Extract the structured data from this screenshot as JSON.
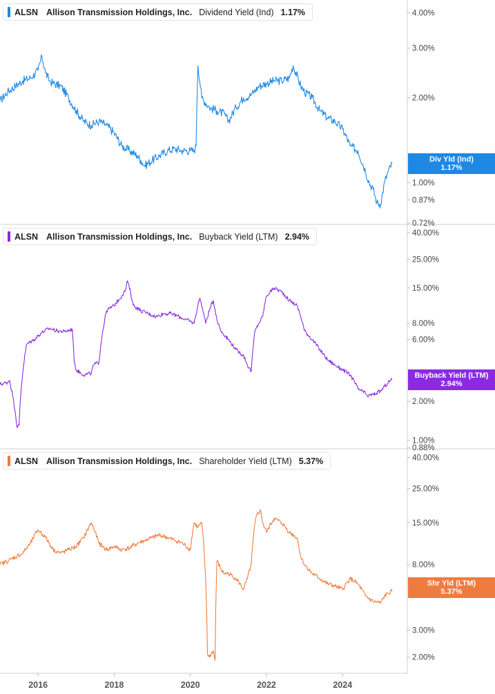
{
  "chart_data": [
    {
      "type": "line",
      "ticker": "ALSN",
      "company": "Allison Transmission Holdings, Inc.",
      "metric": "Dividend Yield (Ind)",
      "latest_value": "1.17%",
      "badge_label": "Div Yld (Ind)",
      "color": "#1e88e5",
      "scale": "log",
      "ylim": [
        0.72,
        4.2
      ],
      "y_ticks": [
        "4.00%",
        "3.00%",
        "2.00%",
        "1.00%",
        "0.87%",
        "0.72%"
      ],
      "series": [
        {
          "x": [
            2015.0,
            2015.2,
            2015.4,
            2015.6,
            2015.8,
            2016.0,
            2016.1,
            2016.2,
            2016.3,
            2016.4,
            2016.6,
            2016.8,
            2017.0,
            2017.2,
            2017.4,
            2017.6,
            2017.8,
            2018.0,
            2018.2,
            2018.4,
            2018.6,
            2018.7,
            2018.8,
            2019.0,
            2019.2,
            2019.4,
            2019.6,
            2019.8,
            2020.0,
            2020.1,
            2020.15,
            2020.2,
            2020.3,
            2020.5,
            2020.7,
            2020.9,
            2021.0,
            2021.2,
            2021.4,
            2021.6,
            2021.8,
            2022.0,
            2022.2,
            2022.4,
            2022.6,
            2022.7,
            2022.9,
            2023.0,
            2023.2,
            2023.4,
            2023.6,
            2023.8,
            2024.0,
            2024.2,
            2024.4,
            2024.6,
            2024.7,
            2024.8,
            2024.9,
            2025.0,
            2025.1,
            2025.2,
            2025.3
          ],
          "y": [
            1.95,
            2.1,
            2.2,
            2.3,
            2.35,
            2.5,
            2.8,
            2.45,
            2.3,
            2.25,
            2.2,
            2.0,
            1.8,
            1.65,
            1.6,
            1.65,
            1.6,
            1.5,
            1.35,
            1.3,
            1.25,
            1.2,
            1.15,
            1.2,
            1.25,
            1.3,
            1.32,
            1.3,
            1.3,
            1.3,
            1.35,
            2.6,
            2.0,
            1.85,
            1.8,
            1.75,
            1.65,
            1.85,
            2.0,
            2.05,
            2.2,
            2.25,
            2.3,
            2.3,
            2.35,
            2.6,
            2.2,
            2.1,
            2.0,
            1.8,
            1.7,
            1.65,
            1.55,
            1.35,
            1.3,
            1.1,
            1.0,
            0.95,
            0.85,
            0.84,
            1.0,
            1.1,
            1.17
          ]
        }
      ]
    },
    {
      "type": "line",
      "ticker": "ALSN",
      "company": "Allison Transmission Holdings, Inc.",
      "metric": "Buyback Yield (LTM)",
      "latest_value": "2.94%",
      "badge_label": "Buyback Yield (LTM)",
      "color": "#8a2be2",
      "scale": "log",
      "ylim": [
        0.88,
        41
      ],
      "y_ticks": [
        "40.00%",
        "25.00%",
        "15.00%",
        "8.00%",
        "6.00%",
        "3.00%",
        "2.00%",
        "1.00%",
        "0.88%"
      ],
      "series": [
        {
          "x": [
            2015.0,
            2015.2,
            2015.25,
            2015.45,
            2015.5,
            2015.7,
            2015.9,
            2016.1,
            2016.3,
            2016.5,
            2016.7,
            2016.9,
            2016.95,
            2017.0,
            2017.2,
            2017.4,
            2017.45,
            2017.6,
            2017.8,
            2018.0,
            2018.2,
            2018.3,
            2018.35,
            2018.5,
            2018.7,
            2018.9,
            2019.1,
            2019.3,
            2019.5,
            2019.7,
            2019.9,
            2020.1,
            2020.2,
            2020.25,
            2020.4,
            2020.6,
            2020.7,
            2020.8,
            2021.0,
            2021.2,
            2021.4,
            2021.5,
            2021.6,
            2021.7,
            2021.8,
            2021.85,
            2021.9,
            2022.0,
            2022.2,
            2022.4,
            2022.6,
            2022.8,
            2022.9,
            2023.0,
            2023.2,
            2023.4,
            2023.6,
            2023.8,
            2024.0,
            2024.2,
            2024.4,
            2024.6,
            2024.65,
            2024.8,
            2025.0,
            2025.1,
            2025.2,
            2025.3
          ],
          "y": [
            2.7,
            2.8,
            2.9,
            1.25,
            1.3,
            5.5,
            6.0,
            6.8,
            7.3,
            7.0,
            6.9,
            7.2,
            4.0,
            3.5,
            3.2,
            3.3,
            3.8,
            4.0,
            10.0,
            11.0,
            13.0,
            14.5,
            17.0,
            11.0,
            10.0,
            9.5,
            9.0,
            9.5,
            9.5,
            9.0,
            8.5,
            8.0,
            11.0,
            12.5,
            8.0,
            12.0,
            8.5,
            7.0,
            6.0,
            5.0,
            4.5,
            3.8,
            3.4,
            7.0,
            8.0,
            8.5,
            9.0,
            13.0,
            15.0,
            14.0,
            12.0,
            11.0,
            9.0,
            7.0,
            6.0,
            5.0,
            4.2,
            3.8,
            3.5,
            3.2,
            2.5,
            2.3,
            2.2,
            2.25,
            2.4,
            2.6,
            2.8,
            2.94
          ]
        }
      ]
    },
    {
      "type": "line",
      "ticker": "ALSN",
      "company": "Allison Transmission Holdings, Inc.",
      "metric": "Shareholder Yield (LTM)",
      "latest_value": "5.37%",
      "badge_label": "Shr Yld (LTM)",
      "color": "#f07b3f",
      "scale": "log",
      "ylim": [
        1.6,
        41
      ],
      "y_ticks": [
        "40.00%",
        "25.00%",
        "15.00%",
        "8.00%",
        "6.00%",
        "3.00%",
        "2.00%"
      ],
      "series": [
        {
          "x": [
            2015.0,
            2015.3,
            2015.6,
            2015.8,
            2016.0,
            2016.2,
            2016.4,
            2016.6,
            2016.8,
            2017.0,
            2017.2,
            2017.4,
            2017.6,
            2017.8,
            2018.0,
            2018.2,
            2018.4,
            2018.6,
            2018.8,
            2019.0,
            2019.2,
            2019.4,
            2019.6,
            2019.8,
            2020.0,
            2020.1,
            2020.2,
            2020.3,
            2020.45,
            2020.5,
            2020.6,
            2020.65,
            2020.7,
            2020.8,
            2020.82,
            2020.9,
            2021.0,
            2021.2,
            2021.4,
            2021.5,
            2021.6,
            2021.7,
            2021.75,
            2021.85,
            2021.9,
            2022.0,
            2022.2,
            2022.4,
            2022.6,
            2022.8,
            2022.9,
            2023.0,
            2023.2,
            2023.4,
            2023.6,
            2023.8,
            2024.0,
            2024.2,
            2024.4,
            2024.6,
            2024.8,
            2025.0,
            2025.1,
            2025.2,
            2025.3
          ],
          "y": [
            8.0,
            8.7,
            9.5,
            11.0,
            13.5,
            12.0,
            10.0,
            9.5,
            10.0,
            10.5,
            12.0,
            15.0,
            11.0,
            10.0,
            10.5,
            10.0,
            10.3,
            11.0,
            11.5,
            12.0,
            12.5,
            12.0,
            11.5,
            11.0,
            10.0,
            15.0,
            14.0,
            15.0,
            2.1,
            2.0,
            2.2,
            1.9,
            8.5,
            7.5,
            7.3,
            7.0,
            7.0,
            6.5,
            5.5,
            6.5,
            8.0,
            15.0,
            17.0,
            18.0,
            15.0,
            13.0,
            16.0,
            15.0,
            13.0,
            12.0,
            9.0,
            8.0,
            7.0,
            6.5,
            6.0,
            5.8,
            5.5,
            6.5,
            6.0,
            5.0,
            4.6,
            4.5,
            5.0,
            5.2,
            5.37
          ]
        }
      ]
    }
  ],
  "x_axis": {
    "range": [
      2015.0,
      2025.7
    ],
    "tick_values": [
      2016,
      2018,
      2020,
      2022,
      2024
    ],
    "tick_labels": [
      "2016",
      "2018",
      "2020",
      "2022",
      "2024"
    ]
  }
}
